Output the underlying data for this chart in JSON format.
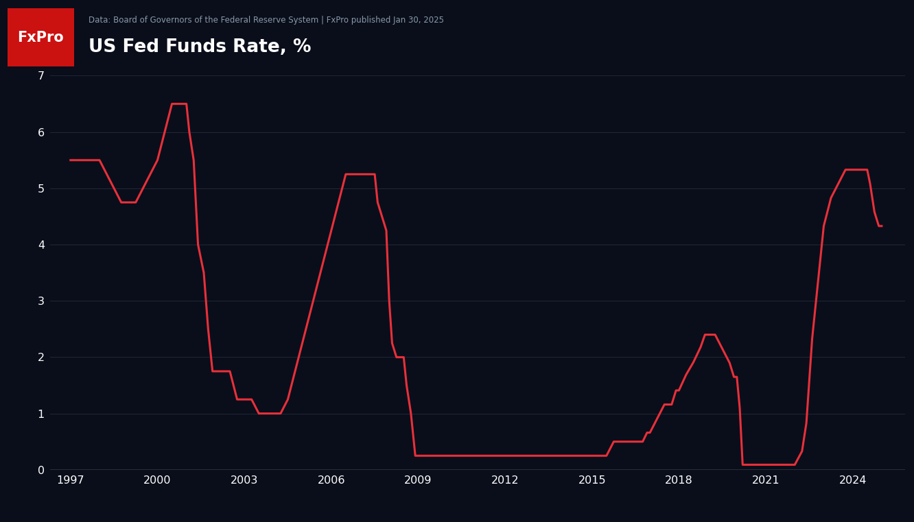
{
  "title": "US Fed Funds Rate, %",
  "subtitle": "Data: Board of Governors of the Federal Reserve System | FxPro published Jan 30, 2025",
  "background_color": "#0a0e1a",
  "header_bg": "#14192b",
  "plot_bg": "#0a0e1a",
  "line_color": "#e8303a",
  "text_color": "#ffffff",
  "subtitle_color": "#8899aa",
  "axis_color": "#ffffff",
  "tick_color": "#ffffff",
  "fxpro_bg": "#cc1111",
  "ylim": [
    0,
    7
  ],
  "yticks": [
    0,
    1,
    2,
    3,
    4,
    5,
    6,
    7
  ],
  "xticks": [
    1997,
    2000,
    2003,
    2006,
    2009,
    2012,
    2015,
    2018,
    2021,
    2024
  ],
  "xlim_left": 1996.3,
  "xlim_right": 2025.8,
  "data": [
    [
      1997.0,
      5.5
    ],
    [
      1997.5,
      5.5
    ],
    [
      1998.0,
      5.5
    ],
    [
      1998.5,
      5.0
    ],
    [
      1998.75,
      4.75
    ],
    [
      1999.0,
      4.75
    ],
    [
      1999.25,
      4.75
    ],
    [
      1999.5,
      5.0
    ],
    [
      1999.75,
      5.25
    ],
    [
      2000.0,
      5.5
    ],
    [
      2000.25,
      6.0
    ],
    [
      2000.5,
      6.5
    ],
    [
      2000.6,
      6.5
    ],
    [
      2000.75,
      6.5
    ],
    [
      2001.0,
      6.5
    ],
    [
      2001.1,
      6.0
    ],
    [
      2001.25,
      5.5
    ],
    [
      2001.4,
      4.0
    ],
    [
      2001.6,
      3.5
    ],
    [
      2001.75,
      2.5
    ],
    [
      2001.9,
      1.75
    ],
    [
      2002.0,
      1.75
    ],
    [
      2002.5,
      1.75
    ],
    [
      2002.75,
      1.25
    ],
    [
      2003.0,
      1.25
    ],
    [
      2003.25,
      1.25
    ],
    [
      2003.5,
      1.0
    ],
    [
      2003.75,
      1.0
    ],
    [
      2004.0,
      1.0
    ],
    [
      2004.25,
      1.0
    ],
    [
      2004.5,
      1.25
    ],
    [
      2004.75,
      1.75
    ],
    [
      2005.0,
      2.25
    ],
    [
      2005.25,
      2.75
    ],
    [
      2005.5,
      3.25
    ],
    [
      2005.75,
      3.75
    ],
    [
      2006.0,
      4.25
    ],
    [
      2006.25,
      4.75
    ],
    [
      2006.5,
      5.25
    ],
    [
      2006.75,
      5.25
    ],
    [
      2007.0,
      5.25
    ],
    [
      2007.25,
      5.25
    ],
    [
      2007.5,
      5.25
    ],
    [
      2007.6,
      4.75
    ],
    [
      2007.75,
      4.5
    ],
    [
      2007.9,
      4.25
    ],
    [
      2008.0,
      3.0
    ],
    [
      2008.1,
      2.25
    ],
    [
      2008.25,
      2.0
    ],
    [
      2008.4,
      2.0
    ],
    [
      2008.5,
      2.0
    ],
    [
      2008.6,
      1.5
    ],
    [
      2008.75,
      1.0
    ],
    [
      2008.9,
      0.25
    ],
    [
      2009.0,
      0.25
    ],
    [
      2009.5,
      0.25
    ],
    [
      2010.0,
      0.25
    ],
    [
      2010.5,
      0.25
    ],
    [
      2011.0,
      0.25
    ],
    [
      2011.5,
      0.25
    ],
    [
      2012.0,
      0.25
    ],
    [
      2012.5,
      0.25
    ],
    [
      2013.0,
      0.25
    ],
    [
      2013.5,
      0.25
    ],
    [
      2014.0,
      0.25
    ],
    [
      2014.5,
      0.25
    ],
    [
      2015.0,
      0.25
    ],
    [
      2015.5,
      0.25
    ],
    [
      2015.75,
      0.5
    ],
    [
      2016.0,
      0.5
    ],
    [
      2016.25,
      0.5
    ],
    [
      2016.5,
      0.5
    ],
    [
      2016.75,
      0.5
    ],
    [
      2016.9,
      0.66
    ],
    [
      2017.0,
      0.66
    ],
    [
      2017.25,
      0.91
    ],
    [
      2017.5,
      1.16
    ],
    [
      2017.75,
      1.16
    ],
    [
      2017.9,
      1.41
    ],
    [
      2018.0,
      1.41
    ],
    [
      2018.25,
      1.69
    ],
    [
      2018.5,
      1.91
    ],
    [
      2018.75,
      2.18
    ],
    [
      2018.9,
      2.4
    ],
    [
      2019.0,
      2.4
    ],
    [
      2019.25,
      2.4
    ],
    [
      2019.5,
      2.15
    ],
    [
      2019.75,
      1.9
    ],
    [
      2019.9,
      1.65
    ],
    [
      2020.0,
      1.65
    ],
    [
      2020.1,
      1.1
    ],
    [
      2020.2,
      0.09
    ],
    [
      2020.25,
      0.09
    ],
    [
      2020.5,
      0.09
    ],
    [
      2021.0,
      0.09
    ],
    [
      2021.5,
      0.09
    ],
    [
      2022.0,
      0.09
    ],
    [
      2022.25,
      0.33
    ],
    [
      2022.4,
      0.83
    ],
    [
      2022.5,
      1.58
    ],
    [
      2022.6,
      2.33
    ],
    [
      2022.75,
      3.08
    ],
    [
      2022.9,
      3.83
    ],
    [
      2023.0,
      4.33
    ],
    [
      2023.25,
      4.83
    ],
    [
      2023.5,
      5.08
    ],
    [
      2023.75,
      5.33
    ],
    [
      2023.9,
      5.33
    ],
    [
      2024.0,
      5.33
    ],
    [
      2024.25,
      5.33
    ],
    [
      2024.5,
      5.33
    ],
    [
      2024.6,
      5.08
    ],
    [
      2024.75,
      4.58
    ],
    [
      2024.9,
      4.33
    ],
    [
      2025.0,
      4.33
    ]
  ]
}
